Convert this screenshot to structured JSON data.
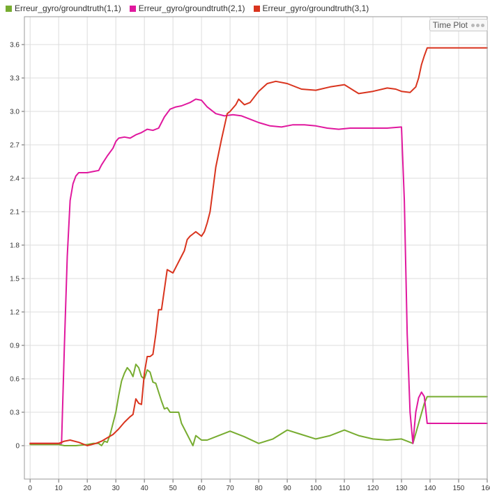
{
  "legend": {
    "items": [
      {
        "label": "Erreur_gyro/groundtruth(1,1)",
        "color": "#77ac30"
      },
      {
        "label": "Erreur_gyro/groundtruth(2,1)",
        "color": "#e0189e"
      },
      {
        "label": "Erreur_gyro/groundtruth(3,1)",
        "color": "#d9341e"
      }
    ]
  },
  "badge": {
    "label": "Time Plot",
    "icon": "ellipsis-icon"
  },
  "chart_data": {
    "type": "line",
    "title": "",
    "xlabel": "",
    "ylabel": "",
    "xlim": [
      -2,
      160
    ],
    "ylim": [
      -0.3,
      3.85
    ],
    "xticks": [
      0,
      10,
      20,
      30,
      40,
      50,
      60,
      70,
      80,
      90,
      100,
      110,
      120,
      130,
      140,
      150,
      160
    ],
    "yticks": [
      0,
      0.3,
      0.6,
      0.9,
      1.2,
      1.5,
      1.8,
      2.1,
      2.4,
      2.7,
      3.0,
      3.3,
      3.6
    ],
    "ytick_labels": [
      "0",
      "0.3",
      "0.6",
      "0.9",
      "1.2",
      "1.5",
      "1.8",
      "2.1",
      "2.4",
      "2.7",
      "3.0",
      "3.3",
      "3.6"
    ],
    "grid": true,
    "legend_position": "top",
    "series": [
      {
        "name": "Erreur_gyro/groundtruth(1,1)",
        "color": "#77ac30",
        "x": [
          0,
          10,
          12,
          16,
          20,
          22,
          24,
          25,
          26,
          27,
          28,
          30,
          31,
          32,
          33,
          34,
          35,
          36,
          37,
          38,
          39,
          40,
          41,
          42,
          43,
          44,
          46,
          47,
          48,
          49,
          50,
          52,
          53,
          55,
          57,
          58,
          60,
          62,
          65,
          70,
          75,
          80,
          85,
          90,
          95,
          100,
          105,
          110,
          115,
          120,
          125,
          130,
          132,
          134,
          136,
          138,
          139,
          160
        ],
        "y": [
          0.01,
          0.01,
          0.0,
          0.0,
          0.01,
          0.02,
          0.02,
          0.0,
          0.04,
          0.03,
          0.1,
          0.3,
          0.45,
          0.58,
          0.65,
          0.7,
          0.67,
          0.62,
          0.73,
          0.7,
          0.62,
          0.6,
          0.68,
          0.66,
          0.57,
          0.56,
          0.4,
          0.33,
          0.34,
          0.3,
          0.3,
          0.3,
          0.2,
          0.1,
          0.0,
          0.09,
          0.05,
          0.05,
          0.08,
          0.13,
          0.08,
          0.02,
          0.06,
          0.14,
          0.1,
          0.06,
          0.09,
          0.14,
          0.09,
          0.06,
          0.05,
          0.06,
          0.04,
          0.02,
          0.2,
          0.38,
          0.44,
          0.44
        ]
      },
      {
        "name": "Erreur_gyro/groundtruth(2,1)",
        "color": "#e0189e",
        "x": [
          0,
          11,
          12,
          13,
          14,
          15,
          16,
          17,
          18,
          20,
          22,
          24,
          25,
          27,
          29,
          30,
          31,
          33,
          35,
          37,
          39,
          41,
          43,
          45,
          47,
          49,
          51,
          53,
          56,
          58,
          60,
          62,
          65,
          68,
          71,
          74,
          77,
          80,
          84,
          88,
          92,
          96,
          100,
          104,
          108,
          112,
          116,
          120,
          125,
          130,
          131,
          132,
          133,
          134,
          135,
          136,
          137,
          138,
          139,
          140,
          145,
          160
        ],
        "y": [
          0.02,
          0.02,
          0.9,
          1.7,
          2.2,
          2.35,
          2.42,
          2.45,
          2.45,
          2.45,
          2.46,
          2.47,
          2.52,
          2.6,
          2.67,
          2.73,
          2.76,
          2.77,
          2.76,
          2.79,
          2.81,
          2.84,
          2.83,
          2.85,
          2.95,
          3.02,
          3.04,
          3.05,
          3.08,
          3.11,
          3.1,
          3.04,
          2.98,
          2.96,
          2.97,
          2.96,
          2.93,
          2.9,
          2.87,
          2.86,
          2.88,
          2.88,
          2.87,
          2.85,
          2.84,
          2.85,
          2.85,
          2.85,
          2.85,
          2.86,
          2.2,
          1.0,
          0.3,
          0.02,
          0.3,
          0.43,
          0.48,
          0.44,
          0.2,
          0.2,
          0.2,
          0.2
        ]
      },
      {
        "name": "Erreur_gyro/groundtruth(3,1)",
        "color": "#d9341e",
        "x": [
          0,
          10,
          12,
          14,
          17,
          20,
          23,
          25,
          27,
          29,
          31,
          33,
          35,
          36,
          37,
          38,
          39,
          40,
          41,
          42,
          43,
          44,
          45,
          46,
          47,
          48,
          50,
          52,
          54,
          55,
          56,
          57,
          58,
          59,
          60,
          61,
          62,
          63,
          65,
          67,
          69,
          70,
          72,
          73,
          75,
          77,
          80,
          83,
          86,
          90,
          95,
          100,
          105,
          110,
          115,
          120,
          125,
          128,
          130,
          133,
          135,
          136,
          137,
          138,
          139,
          140,
          150,
          160
        ],
        "y": [
          0.02,
          0.02,
          0.04,
          0.05,
          0.03,
          0.0,
          0.02,
          0.04,
          0.07,
          0.1,
          0.15,
          0.21,
          0.26,
          0.28,
          0.42,
          0.38,
          0.37,
          0.65,
          0.8,
          0.8,
          0.82,
          1.0,
          1.22,
          1.22,
          1.4,
          1.58,
          1.55,
          1.65,
          1.75,
          1.85,
          1.88,
          1.9,
          1.92,
          1.9,
          1.88,
          1.92,
          2.0,
          2.1,
          2.5,
          2.75,
          2.98,
          3.0,
          3.06,
          3.11,
          3.06,
          3.08,
          3.18,
          3.25,
          3.27,
          3.25,
          3.2,
          3.19,
          3.22,
          3.24,
          3.16,
          3.18,
          3.21,
          3.2,
          3.18,
          3.17,
          3.22,
          3.3,
          3.42,
          3.5,
          3.57,
          3.57,
          3.57,
          3.57
        ]
      }
    ]
  }
}
